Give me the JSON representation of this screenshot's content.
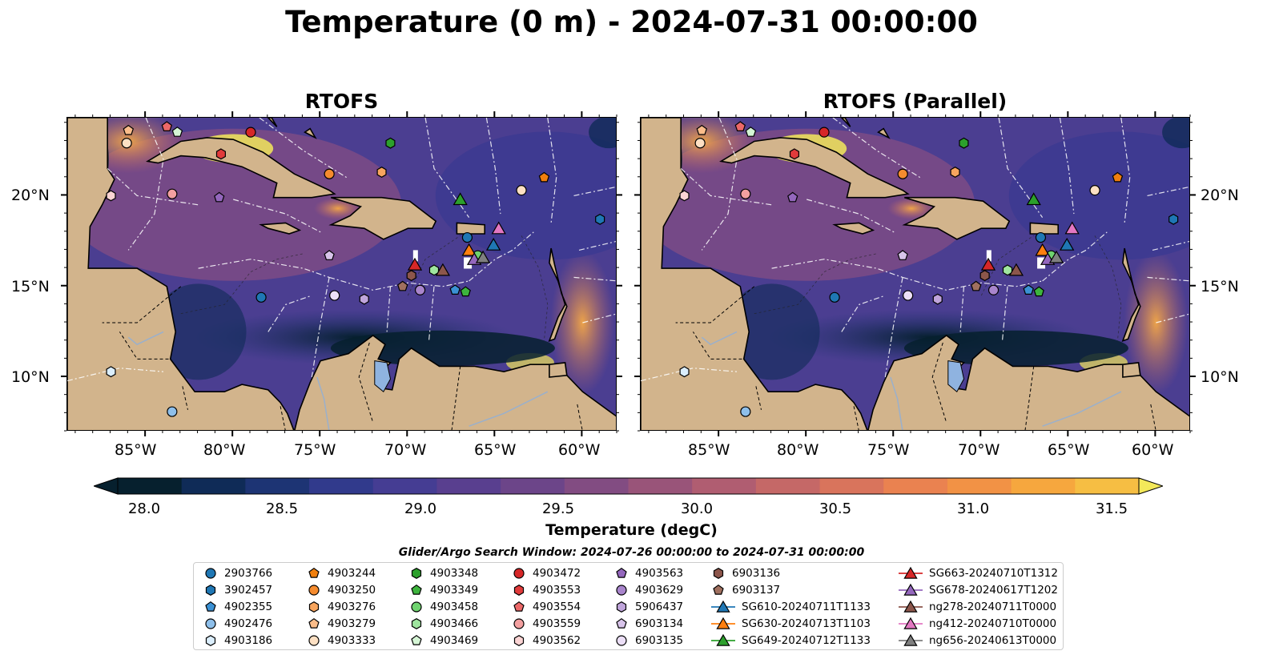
{
  "title": "Temperature (0 m) - 2024-07-31 00:00:00",
  "panels": [
    {
      "title": "RTOFS"
    },
    {
      "title": "RTOFS (Parallel)"
    }
  ],
  "lon_ticks": [
    "85°W",
    "80°W",
    "75°W",
    "70°W",
    "65°W",
    "60°W"
  ],
  "lat_ticks": [
    "20°N",
    "15°N",
    "10°N"
  ],
  "colorbar": {
    "label": "Temperature (degC)",
    "ticks": [
      "28.0",
      "28.5",
      "29.0",
      "29.5",
      "30.0",
      "30.5",
      "31.0",
      "31.5"
    ],
    "min": 27.75,
    "max": 31.75,
    "colors": [
      "#06202e",
      "#0f2b57",
      "#1d3474",
      "#313a8c",
      "#453d93",
      "#593f8f",
      "#6c4589",
      "#824c82",
      "#995479",
      "#b05d71",
      "#c56867",
      "#d9745c",
      "#ea8250",
      "#f29245",
      "#f6a73e",
      "#f6be43",
      "#f5d24d",
      "#f3e85a"
    ]
  },
  "search_window": "Glider/Argo Search Window: 2024-07-26 00:00:00 to 2024-07-31 00:00:00",
  "legend": {
    "columns": [
      [
        {
          "label": "2903766",
          "marker": "circle",
          "color": "#1f77b4"
        },
        {
          "label": "3902457",
          "marker": "hexagon",
          "color": "#1f77b4"
        },
        {
          "label": "4902355",
          "marker": "pentagon",
          "color": "#3b91d4"
        },
        {
          "label": "4902476",
          "marker": "circle",
          "color": "#8ebfea"
        },
        {
          "label": "4903186",
          "marker": "hexagon",
          "color": "#dbeefc"
        }
      ],
      [
        {
          "label": "4903244",
          "marker": "pentagon",
          "color": "#f07f0e"
        },
        {
          "label": "4903250",
          "marker": "circle",
          "color": "#f58b2e"
        },
        {
          "label": "4903276",
          "marker": "hexagon",
          "color": "#f8a55e"
        },
        {
          "label": "4903279",
          "marker": "pentagon",
          "color": "#fbbd8a"
        },
        {
          "label": "4903333",
          "marker": "circle",
          "color": "#fde0c3"
        }
      ],
      [
        {
          "label": "4903348",
          "marker": "hexagon",
          "color": "#2ca02c"
        },
        {
          "label": "4903349",
          "marker": "pentagon",
          "color": "#3db43d"
        },
        {
          "label": "4903458",
          "marker": "circle",
          "color": "#6fd36f"
        },
        {
          "label": "4903466",
          "marker": "hexagon",
          "color": "#9fe59f"
        },
        {
          "label": "4903469",
          "marker": "pentagon",
          "color": "#d5f5d5"
        }
      ],
      [
        {
          "label": "4903472",
          "marker": "circle",
          "color": "#d62728"
        },
        {
          "label": "4903553",
          "marker": "hexagon",
          "color": "#e13b3b"
        },
        {
          "label": "4903554",
          "marker": "pentagon",
          "color": "#ec6868"
        },
        {
          "label": "4903559",
          "marker": "circle",
          "color": "#f3a0a0"
        },
        {
          "label": "4903562",
          "marker": "hexagon",
          "color": "#fbd4d4"
        }
      ],
      [
        {
          "label": "4903563",
          "marker": "pentagon",
          "color": "#9467bd"
        },
        {
          "label": "4903629",
          "marker": "circle",
          "color": "#a985cc"
        },
        {
          "label": "5906437",
          "marker": "hexagon",
          "color": "#c0a5db"
        },
        {
          "label": "6903134",
          "marker": "pentagon",
          "color": "#d8c4ea"
        },
        {
          "label": "6903135",
          "marker": "circle",
          "color": "#ecdff7"
        }
      ],
      [
        {
          "label": "6903136",
          "marker": "hexagon",
          "color": "#8c564b"
        },
        {
          "label": "6903137",
          "marker": "pentagon",
          "color": "#a0705f"
        },
        {
          "label": "SG610-20240711T1133",
          "marker": "triangle",
          "color": "#1f77b4"
        },
        {
          "label": "SG630-20240713T1103",
          "marker": "triangle",
          "color": "#ff7f0e"
        },
        {
          "label": "SG649-20240712T1133",
          "marker": "triangle",
          "color": "#2ca02c"
        }
      ],
      [
        {
          "label": "SG663-20240710T1312",
          "marker": "triangle",
          "color": "#d62728"
        },
        {
          "label": "SG678-20240617T1202",
          "marker": "triangle",
          "color": "#9467bd"
        },
        {
          "label": "ng278-20240711T0000",
          "marker": "triangle",
          "color": "#8c564b"
        },
        {
          "label": "ng412-20240710T0000",
          "marker": "triangle",
          "color": "#e377c2"
        },
        {
          "label": "ng656-20240613T0000",
          "marker": "triangle",
          "color": "#7f7f7f"
        }
      ]
    ]
  },
  "observations": [
    {
      "id": "2903766",
      "lon": -66.6,
      "lat": 17.7
    },
    {
      "id": "3902457",
      "lon": -59.0,
      "lat": 18.7
    },
    {
      "id": "4902355",
      "lon": -67.3,
      "lat": 14.8
    },
    {
      "id": "4902476",
      "lon": -83.5,
      "lat": 8.1
    },
    {
      "id": "4903186",
      "lon": -87.0,
      "lat": 10.3
    },
    {
      "id": "4903244",
      "lon": -62.2,
      "lat": 21.0
    },
    {
      "id": "4903250",
      "lon": -74.5,
      "lat": 21.2
    },
    {
      "id": "4903276",
      "lon": -71.5,
      "lat": 21.3
    },
    {
      "id": "4903279",
      "lon": -86.0,
      "lat": 23.6
    },
    {
      "id": "4903333",
      "lon": -63.5,
      "lat": 20.3
    },
    {
      "id": "4903348",
      "lon": -71.0,
      "lat": 22.9
    },
    {
      "id": "4903349",
      "lon": -66.7,
      "lat": 14.7
    },
    {
      "id": "4903458",
      "lon": -66.0,
      "lat": 16.7
    },
    {
      "id": "4903466",
      "lon": -68.5,
      "lat": 15.9
    },
    {
      "id": "4903469",
      "lon": -83.2,
      "lat": 23.5
    },
    {
      "id": "4903472",
      "lon": -79.0,
      "lat": 23.5
    },
    {
      "id": "4903553",
      "lon": -80.7,
      "lat": 22.3
    },
    {
      "id": "4903554",
      "lon": -83.8,
      "lat": 23.8
    },
    {
      "id": "4903559",
      "lon": -83.5,
      "lat": 20.1
    },
    {
      "id": "4903562",
      "lon": -87.0,
      "lat": 20.0
    },
    {
      "id": "4903563",
      "lon": -80.8,
      "lat": 19.9
    },
    {
      "id": "4903629",
      "lon": -69.3,
      "lat": 14.8
    },
    {
      "id": "5906437",
      "lon": -72.5,
      "lat": 14.3
    },
    {
      "id": "6903134",
      "lon": -74.5,
      "lat": 16.7
    },
    {
      "id": "6903135",
      "lon": -74.2,
      "lat": 14.5
    },
    {
      "id": "6903136",
      "lon": -69.8,
      "lat": 15.6
    },
    {
      "id": "6903137",
      "lon": -70.3,
      "lat": 15.0
    },
    {
      "id": "4903333b",
      "lon": -86.1,
      "lat": 22.9
    },
    {
      "id": "2903766b",
      "lon": -78.4,
      "lat": 14.4
    }
  ],
  "gliders": [
    {
      "id": "SG610-20240711T1133",
      "lon": -65.1,
      "lat": 17.3
    },
    {
      "id": "SG630-20240713T1103",
      "lon": -66.5,
      "lat": 17.0
    },
    {
      "id": "SG649-20240712T1133",
      "lon": -67.0,
      "lat": 19.8
    },
    {
      "id": "SG663-20240710T1312",
      "lon": -69.6,
      "lat": 16.2
    },
    {
      "id": "SG678-20240617T1202",
      "lon": -66.2,
      "lat": 16.5
    },
    {
      "id": "ng278-20240711T0000",
      "lon": -68.0,
      "lat": 15.9
    },
    {
      "id": "ng412-20240710T0000",
      "lon": -64.8,
      "lat": 18.2
    },
    {
      "id": "ng656-20240613T0000",
      "lon": -65.7,
      "lat": 16.6
    }
  ]
}
